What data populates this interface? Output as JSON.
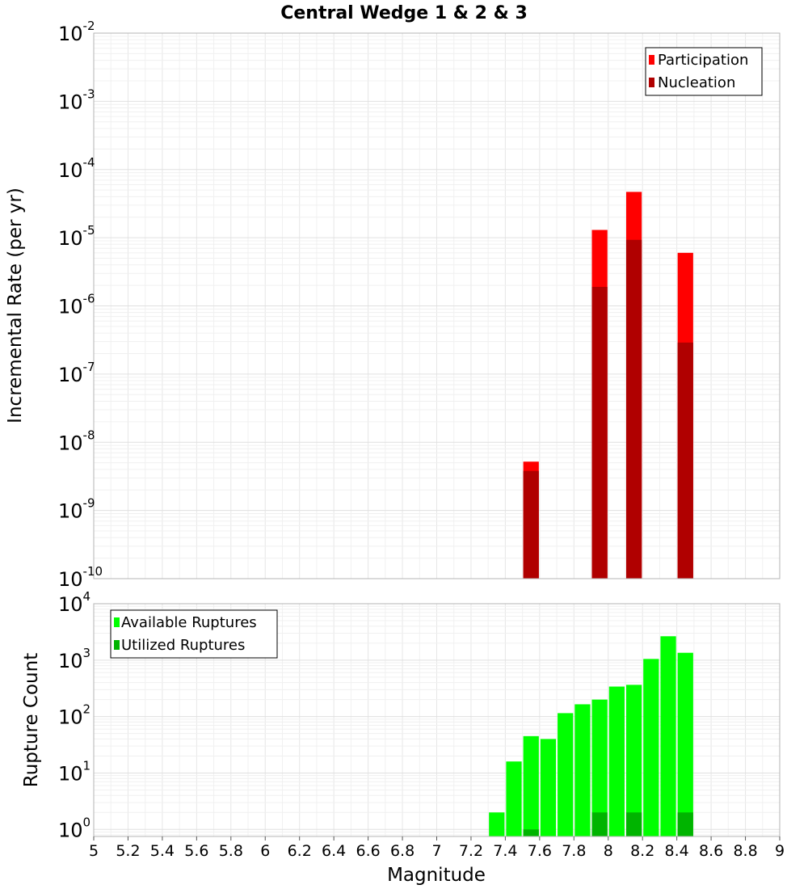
{
  "chart_data": [
    {
      "type": "bar",
      "title": "Central Wedge 1 & 2 & 3",
      "xlabel": "",
      "ylabel": "Incremental Rate (per yr)",
      "yscale": "log",
      "ylim": [
        1e-10,
        0.01
      ],
      "xlim": [
        5,
        9
      ],
      "bar_width": 0.1,
      "grid": true,
      "legend_position": "top-right",
      "ytick_labels": [
        {
          "base": "10",
          "exp": "-2"
        },
        {
          "base": "10",
          "exp": "-3"
        },
        {
          "base": "10",
          "exp": "-4"
        },
        {
          "base": "10",
          "exp": "-5"
        },
        {
          "base": "10",
          "exp": "-6"
        },
        {
          "base": "10",
          "exp": "-7"
        },
        {
          "base": "10",
          "exp": "-8"
        },
        {
          "base": "10",
          "exp": "-9"
        },
        {
          "base": "10",
          "exp": "-10"
        }
      ],
      "series": [
        {
          "name": "Participation",
          "color": "#ff0000",
          "x": [
            7.55,
            7.95,
            8.15,
            8.45
          ],
          "values": [
            5.2e-09,
            1.3e-05,
            4.7e-05,
            6e-06
          ]
        },
        {
          "name": "Nucleation",
          "color": "#b00000",
          "x": [
            7.55,
            7.95,
            8.15,
            8.45
          ],
          "values": [
            3.8e-09,
            1.9e-06,
            9.3e-06,
            2.9e-07
          ]
        }
      ]
    },
    {
      "type": "bar",
      "title": "",
      "xlabel": "Magnitude",
      "ylabel": "Rupture Count",
      "yscale": "log",
      "ylim": [
        0.75,
        10000
      ],
      "xlim": [
        5,
        9
      ],
      "bar_width": 0.1,
      "grid": true,
      "legend_position": "top-left",
      "ytick_labels": [
        {
          "base": "10",
          "exp": "4"
        },
        {
          "base": "10",
          "exp": "3"
        },
        {
          "base": "10",
          "exp": "2"
        },
        {
          "base": "10",
          "exp": "1"
        },
        {
          "base": "10",
          "exp": "0"
        }
      ],
      "xtick_labels": [
        "5",
        "5.2",
        "5.4",
        "5.6",
        "5.8",
        "6",
        "6.2",
        "6.4",
        "6.6",
        "6.8",
        "7",
        "7.2",
        "7.4",
        "7.6",
        "7.8",
        "8",
        "8.2",
        "8.4",
        "8.6",
        "8.8",
        "9"
      ],
      "series": [
        {
          "name": "Available Ruptures",
          "color": "#00ff00",
          "x": [
            7.35,
            7.45,
            7.55,
            7.65,
            7.75,
            7.85,
            7.95,
            8.05,
            8.15,
            8.25,
            8.35,
            8.45
          ],
          "values": [
            2,
            16,
            45,
            40,
            115,
            165,
            200,
            340,
            365,
            1050,
            2650,
            1350
          ]
        },
        {
          "name": "Utilized Ruptures",
          "color": "#00b400",
          "x": [
            7.55,
            7.95,
            8.15,
            8.45
          ],
          "values": [
            1,
            2,
            2,
            2
          ]
        }
      ]
    }
  ]
}
